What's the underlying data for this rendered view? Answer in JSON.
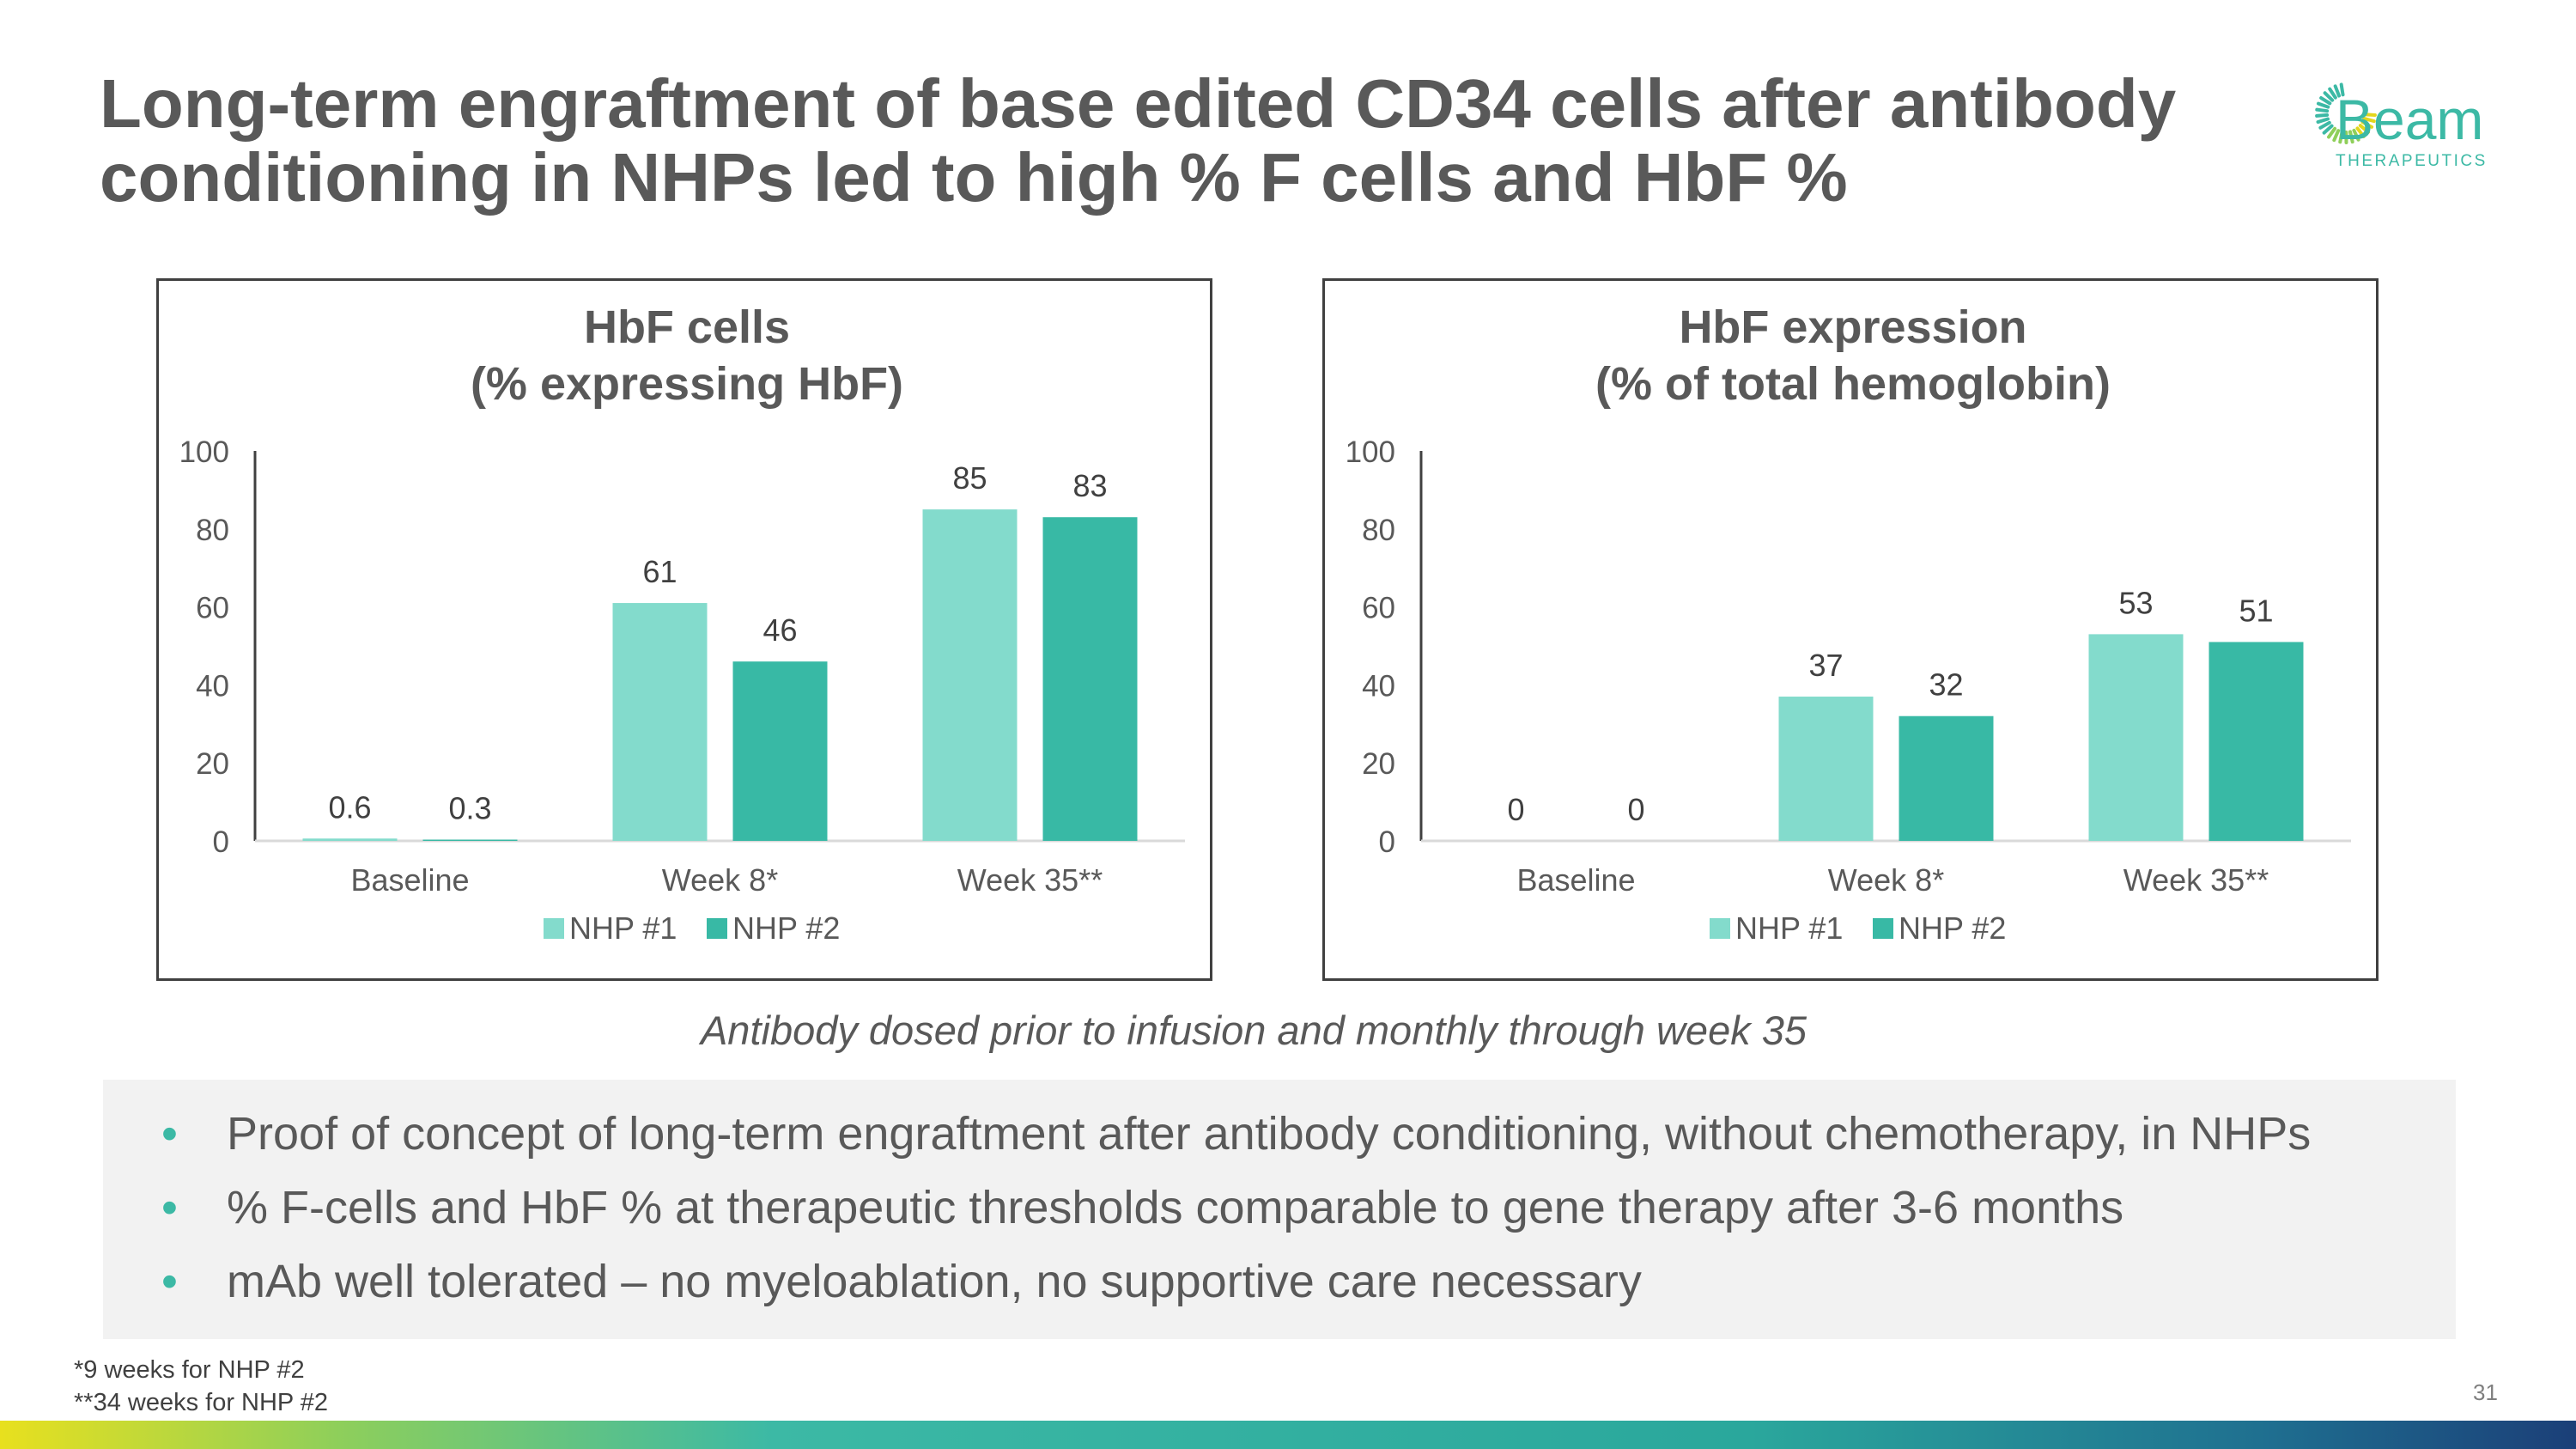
{
  "slide": {
    "title_line1": "Long-term engraftment of base edited CD34 cells after antibody",
    "title_line2": "conditioning in NHPs led to high % F cells and HbF %",
    "logo": {
      "name": "Beam",
      "tagline": "THERAPEUTICS"
    },
    "caption": "Antibody dosed prior to infusion and monthly through week 35",
    "bullets": [
      "Proof of concept of long-term engraftment after antibody conditioning, without chemotherapy, in NHPs",
      "% F-cells and HbF % at therapeutic thresholds comparable to gene therapy after 3-6 months",
      "mAb well tolerated – no myeloablation, no supportive care necessary"
    ],
    "bullet_symbol": "•",
    "footnotes": [
      "*9 weeks for NHP #2",
      "**34 weeks for NHP #2"
    ],
    "page_number": "31"
  },
  "colors": {
    "series1": "#83dbcc",
    "series2": "#38b9a5",
    "text": "#595959",
    "axis": "#404040",
    "bullet": "#3cb9a5"
  },
  "chart_data": [
    {
      "type": "bar",
      "title": [
        "HbF cells",
        "(% expressing HbF)"
      ],
      "categories": [
        "Baseline",
        "Week 8*",
        "Week 35**"
      ],
      "series": [
        {
          "name": "NHP #1",
          "values": [
            0.6,
            61,
            85
          ]
        },
        {
          "name": "NHP #2",
          "values": [
            0.3,
            46,
            83
          ]
        }
      ],
      "ylim": [
        0,
        100
      ],
      "yticks": [
        0,
        20,
        40,
        60,
        80,
        100
      ],
      "xlabel": "",
      "ylabel": "",
      "legend": "bottom"
    },
    {
      "type": "bar",
      "title": [
        "HbF expression",
        "(% of total hemoglobin)"
      ],
      "categories": [
        "Baseline",
        "Week 8*",
        "Week 35**"
      ],
      "series": [
        {
          "name": "NHP #1",
          "values": [
            0,
            37,
            53
          ]
        },
        {
          "name": "NHP #2",
          "values": [
            0,
            32,
            51
          ]
        }
      ],
      "ylim": [
        0,
        100
      ],
      "yticks": [
        0,
        20,
        40,
        60,
        80,
        100
      ],
      "xlabel": "",
      "ylabel": "",
      "legend": "bottom"
    }
  ]
}
